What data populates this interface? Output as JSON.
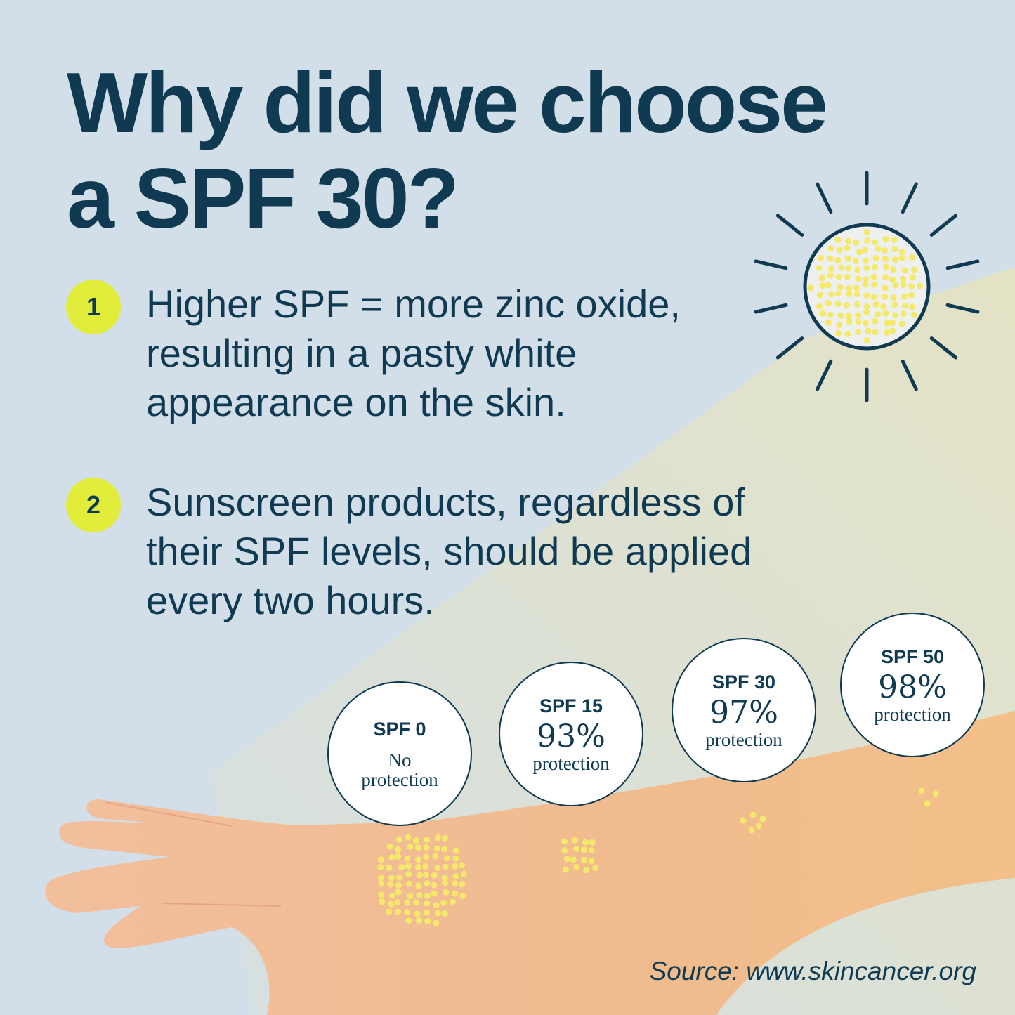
{
  "title": {
    "line1": "Why did we choose",
    "line2": "a SPF 30?"
  },
  "points": [
    {
      "number": "1",
      "text": "Higher SPF = more zinc oxide, resulting in a pasty white appearance on the skin."
    },
    {
      "number": "2",
      "text": "Sunscreen products, regardless of their SPF levels, should be applied every two hours."
    }
  ],
  "levels": [
    {
      "spf": "SPF 0",
      "value": "",
      "label": "No protection"
    },
    {
      "spf": "SPF 15",
      "value": "93%",
      "label": "protection"
    },
    {
      "spf": "SPF 30",
      "value": "97%",
      "label": "protection"
    },
    {
      "spf": "SPF 50",
      "value": "98%",
      "label": "protection"
    }
  ],
  "source": "Source: www.skincancer.org",
  "colors": {
    "text": "#0f3a52",
    "badge": "#e2ec3a",
    "skin": "#f0b98e",
    "dots": "#f5e96a",
    "background": "#d3dfe8"
  },
  "icons": [
    "sun-icon",
    "arm-illustration",
    "uv-dots"
  ]
}
